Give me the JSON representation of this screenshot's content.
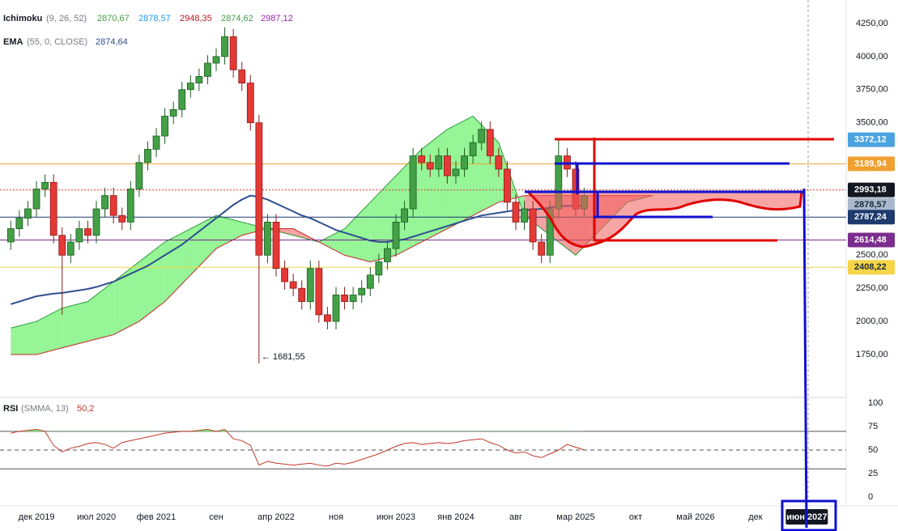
{
  "chart_data": [
    {
      "type": "candlestick",
      "legend": {
        "name": "Ichimoku",
        "params": "(9, 26, 52)",
        "values": [
          "2870,67",
          "2878,57",
          "2948,35",
          "2874,62",
          "2987,12"
        ],
        "colors": [
          "#43a047",
          "#2196f3",
          "#b71c1c",
          "#43a047",
          "#9c27b0"
        ]
      },
      "legend2": {
        "name": "EMA",
        "params": "(55, 0, CLOSE)",
        "value": "2874,64",
        "color": "#2f4f8f"
      },
      "x": [
        -3,
        -2,
        -1,
        0,
        1,
        2,
        3,
        4,
        5,
        6,
        7,
        8,
        9,
        10,
        11,
        12,
        13,
        14,
        15,
        16,
        17,
        18,
        19,
        20,
        21,
        22,
        23,
        24,
        25,
        26,
        27,
        28,
        29,
        30,
        31,
        32,
        33,
        34,
        35,
        36,
        37,
        38,
        39,
        40,
        41,
        42,
        43,
        44,
        45,
        46,
        47,
        48,
        49,
        50,
        51,
        52,
        53,
        54,
        55,
        56,
        57,
        58,
        59,
        60,
        61,
        62,
        63,
        64
      ],
      "open": [
        2600,
        2700,
        2780,
        2850,
        3000,
        3050,
        2650,
        2500,
        2600,
        2700,
        2650,
        2850,
        2950,
        2800,
        2750,
        3000,
        3200,
        3300,
        3400,
        3550,
        3600,
        3750,
        3800,
        3850,
        3950,
        4000,
        4150,
        3900,
        3800,
        3500,
        2500,
        2750,
        2400,
        2300,
        2250,
        2150,
        2400,
        2050,
        2000,
        2200,
        2150,
        2200,
        2250,
        2350,
        2450,
        2550,
        2750,
        2850,
        3250,
        3200,
        3150,
        3250,
        3100,
        3150,
        3250,
        3350,
        3450,
        3250,
        3150,
        2900,
        2750,
        2850,
        2600,
        2500,
        2850,
        3250,
        3150,
        2850
      ],
      "high": [
        2760,
        2840,
        2910,
        3060,
        3110,
        3110,
        2710,
        2660,
        2760,
        2760,
        2910,
        3010,
        3010,
        2860,
        3060,
        3260,
        3360,
        3460,
        3610,
        3660,
        3810,
        3860,
        3910,
        4010,
        4060,
        4220,
        4210,
        3960,
        3860,
        3560,
        2810,
        2810,
        2460,
        2360,
        2310,
        2460,
        2460,
        2110,
        2260,
        2260,
        2260,
        2310,
        2410,
        2510,
        2610,
        2810,
        2910,
        3310,
        3310,
        3260,
        3310,
        3310,
        3210,
        3310,
        3410,
        3510,
        3510,
        3310,
        3210,
        2960,
        2910,
        2910,
        2660,
        2910,
        3370,
        3310,
        3210,
        3010
      ],
      "low": [
        2540,
        2640,
        2720,
        2790,
        2940,
        2590,
        2050,
        2440,
        2540,
        2590,
        2590,
        2790,
        2740,
        2690,
        2690,
        2940,
        3140,
        3240,
        3340,
        3490,
        3540,
        3690,
        3740,
        3790,
        3890,
        3940,
        3840,
        3740,
        3440,
        1681.55,
        2440,
        2340,
        2240,
        2190,
        2090,
        2090,
        1990,
        1940,
        1940,
        2090,
        2090,
        2140,
        2190,
        2290,
        2390,
        2490,
        2690,
        2790,
        3140,
        3090,
        3090,
        3040,
        3040,
        3090,
        3190,
        3290,
        3190,
        3090,
        2840,
        2690,
        2690,
        2540,
        2440,
        2440,
        2790,
        3090,
        2790,
        2790
      ],
      "close": [
        2700,
        2780,
        2850,
        3000,
        3050,
        2650,
        2500,
        2600,
        2700,
        2650,
        2850,
        2950,
        2800,
        2750,
        3000,
        3200,
        3300,
        3400,
        3550,
        3600,
        3750,
        3800,
        3850,
        3950,
        4000,
        4150,
        3900,
        3800,
        3500,
        2500,
        2750,
        2400,
        2300,
        2250,
        2150,
        2400,
        2050,
        2000,
        2200,
        2150,
        2200,
        2250,
        2350,
        2450,
        2550,
        2750,
        2850,
        3250,
        3200,
        3150,
        3250,
        3100,
        3150,
        3250,
        3350,
        3450,
        3250,
        3150,
        2900,
        2750,
        2850,
        2600,
        2500,
        2850,
        3250,
        3150,
        2850,
        2950
      ],
      "up_color": "#43a047",
      "down_color": "#e53935",
      "series": [
        {
          "color": "#2f4f8f",
          "values": [
            2130,
            2150,
            2170,
            2190,
            2200,
            2210,
            2215,
            2225,
            2235,
            2245,
            2260,
            2280,
            2300,
            2330,
            2360,
            2390,
            2420,
            2460,
            2500,
            2540,
            2580,
            2630,
            2680,
            2730,
            2780,
            2830,
            2880,
            2920,
            2950,
            2940,
            2920,
            2890,
            2860,
            2830,
            2800,
            2780,
            2750,
            2720,
            2690,
            2670,
            2650,
            2630,
            2610,
            2600,
            2600,
            2610,
            2620,
            2640,
            2660,
            2680,
            2700,
            2720,
            2740,
            2760,
            2780,
            2800,
            2810,
            2820,
            2830,
            2840,
            2840,
            2845,
            2850,
            2860,
            2870,
            2872,
            2874,
            2874.64
          ]
        }
      ],
      "cloud": {
        "x": [
          -3,
          0,
          3,
          6,
          9,
          12,
          15,
          18,
          21,
          24,
          27,
          30,
          33,
          36,
          39,
          42,
          45,
          48,
          51,
          54,
          57,
          60,
          63,
          66,
          69,
          72
        ],
        "span_a": [
          1950,
          2000,
          2100,
          2150,
          2300,
          2450,
          2600,
          2700,
          2800,
          2750,
          2700,
          2650,
          2600,
          2700,
          2900,
          3100,
          3300,
          3450,
          3550,
          3350,
          2800,
          2650,
          2500,
          2700,
          2900,
          2950
        ],
        "span_b": [
          1750,
          1750,
          1800,
          1850,
          1900,
          2000,
          2150,
          2350,
          2550,
          2650,
          2700,
          2700,
          2600,
          2500,
          2450,
          2500,
          2600,
          2700,
          2800,
          2900,
          2950,
          2950,
          2950,
          2950,
          2950,
          2950
        ],
        "up_color": "#7cf27c",
        "down_color": "#f28b8b"
      },
      "price_lines": [
        {
          "value": 3372.12,
          "label": "3372,12",
          "color": "#4aa3df",
          "text_color": "#ffffff",
          "line": false
        },
        {
          "value": 3189.94,
          "label": "3189,94",
          "color": "#f0a030",
          "text_color": "#ffffff",
          "line": "solid"
        },
        {
          "value": 2993.18,
          "label": "2993,18",
          "color": "#131722",
          "text_color": "#ffffff",
          "line": "dashed"
        },
        {
          "value": 2878.57,
          "label": "2878,57",
          "color": "#a9b8cc",
          "text_color": "#1e2a3a",
          "line": false
        },
        {
          "value": 2787.24,
          "label": "2787,24",
          "color": "#1e3a6e",
          "text_color": "#ffffff",
          "line": "solid"
        },
        {
          "value": 2614.48,
          "label": "2614,48",
          "color": "#7b2d8e",
          "text_color": "#ffffff",
          "line": "solid"
        },
        {
          "value": 2408.22,
          "label": "2408,22",
          "color": "#f5d547",
          "text_color": "#1e2a3a",
          "line": "solid"
        }
      ],
      "low_annotation": "← 1681,55",
      "xlim": [
        -4.26,
        94.6
      ],
      "ylim": [
        1432,
        4427
      ],
      "yticks": [
        {
          "value": 4250,
          "label": "4250,00"
        },
        {
          "value": 4000,
          "label": "4000,00"
        },
        {
          "value": 3750,
          "label": "3750,00"
        },
        {
          "value": 3500,
          "label": "3500,00"
        },
        {
          "value": 2500,
          "label": "2500,00"
        },
        {
          "value": 2250,
          "label": "2250,00"
        },
        {
          "value": 2000,
          "label": "2000,00"
        },
        {
          "value": 1750,
          "label": "1750,00"
        }
      ],
      "xticks": [
        {
          "value": 0,
          "label": "дек 2019"
        },
        {
          "value": 7,
          "label": "июл 2020"
        },
        {
          "value": 14,
          "label": "фев 2021"
        },
        {
          "value": 21,
          "label": "сен"
        },
        {
          "value": 28,
          "label": "апр 2022"
        },
        {
          "value": 35,
          "label": "ноя"
        },
        {
          "value": 42,
          "label": "июн 2023"
        },
        {
          "value": 49,
          "label": "янв 2024"
        },
        {
          "value": 56,
          "label": "авг"
        },
        {
          "value": 63,
          "label": "мар 2025"
        },
        {
          "value": 70,
          "label": "окт"
        },
        {
          "value": 77,
          "label": "май 2026"
        },
        {
          "value": 84,
          "label": "дек"
        },
        {
          "value": 90,
          "label": "июн 2027",
          "highlight": true
        }
      ]
    },
    {
      "type": "line",
      "legend": {
        "name": "RSI",
        "params": "(SMMA, 13)",
        "value": "50,2",
        "color": "#c0392b"
      },
      "color": "#c0392b",
      "fill_color": "#7cf27c",
      "values": [
        68,
        70,
        71,
        72,
        70,
        55,
        48,
        52,
        54,
        57,
        58,
        56,
        52,
        58,
        60,
        62,
        64,
        66,
        68,
        69,
        70,
        70,
        71,
        72,
        70,
        72,
        62,
        60,
        55,
        34,
        38,
        36,
        35,
        34,
        35,
        36,
        34,
        33,
        36,
        35,
        37,
        40,
        43,
        46,
        50,
        54,
        57,
        58,
        56,
        57,
        58,
        57,
        58,
        60,
        61,
        62,
        58,
        55,
        50,
        47,
        48,
        44,
        42,
        46,
        50,
        56,
        53,
        50.2
      ],
      "ylim": [
        -9.5,
        105.2
      ],
      "yticks": [
        0,
        25,
        50,
        75,
        100
      ],
      "bands": [
        70,
        50,
        30
      ]
    }
  ]
}
